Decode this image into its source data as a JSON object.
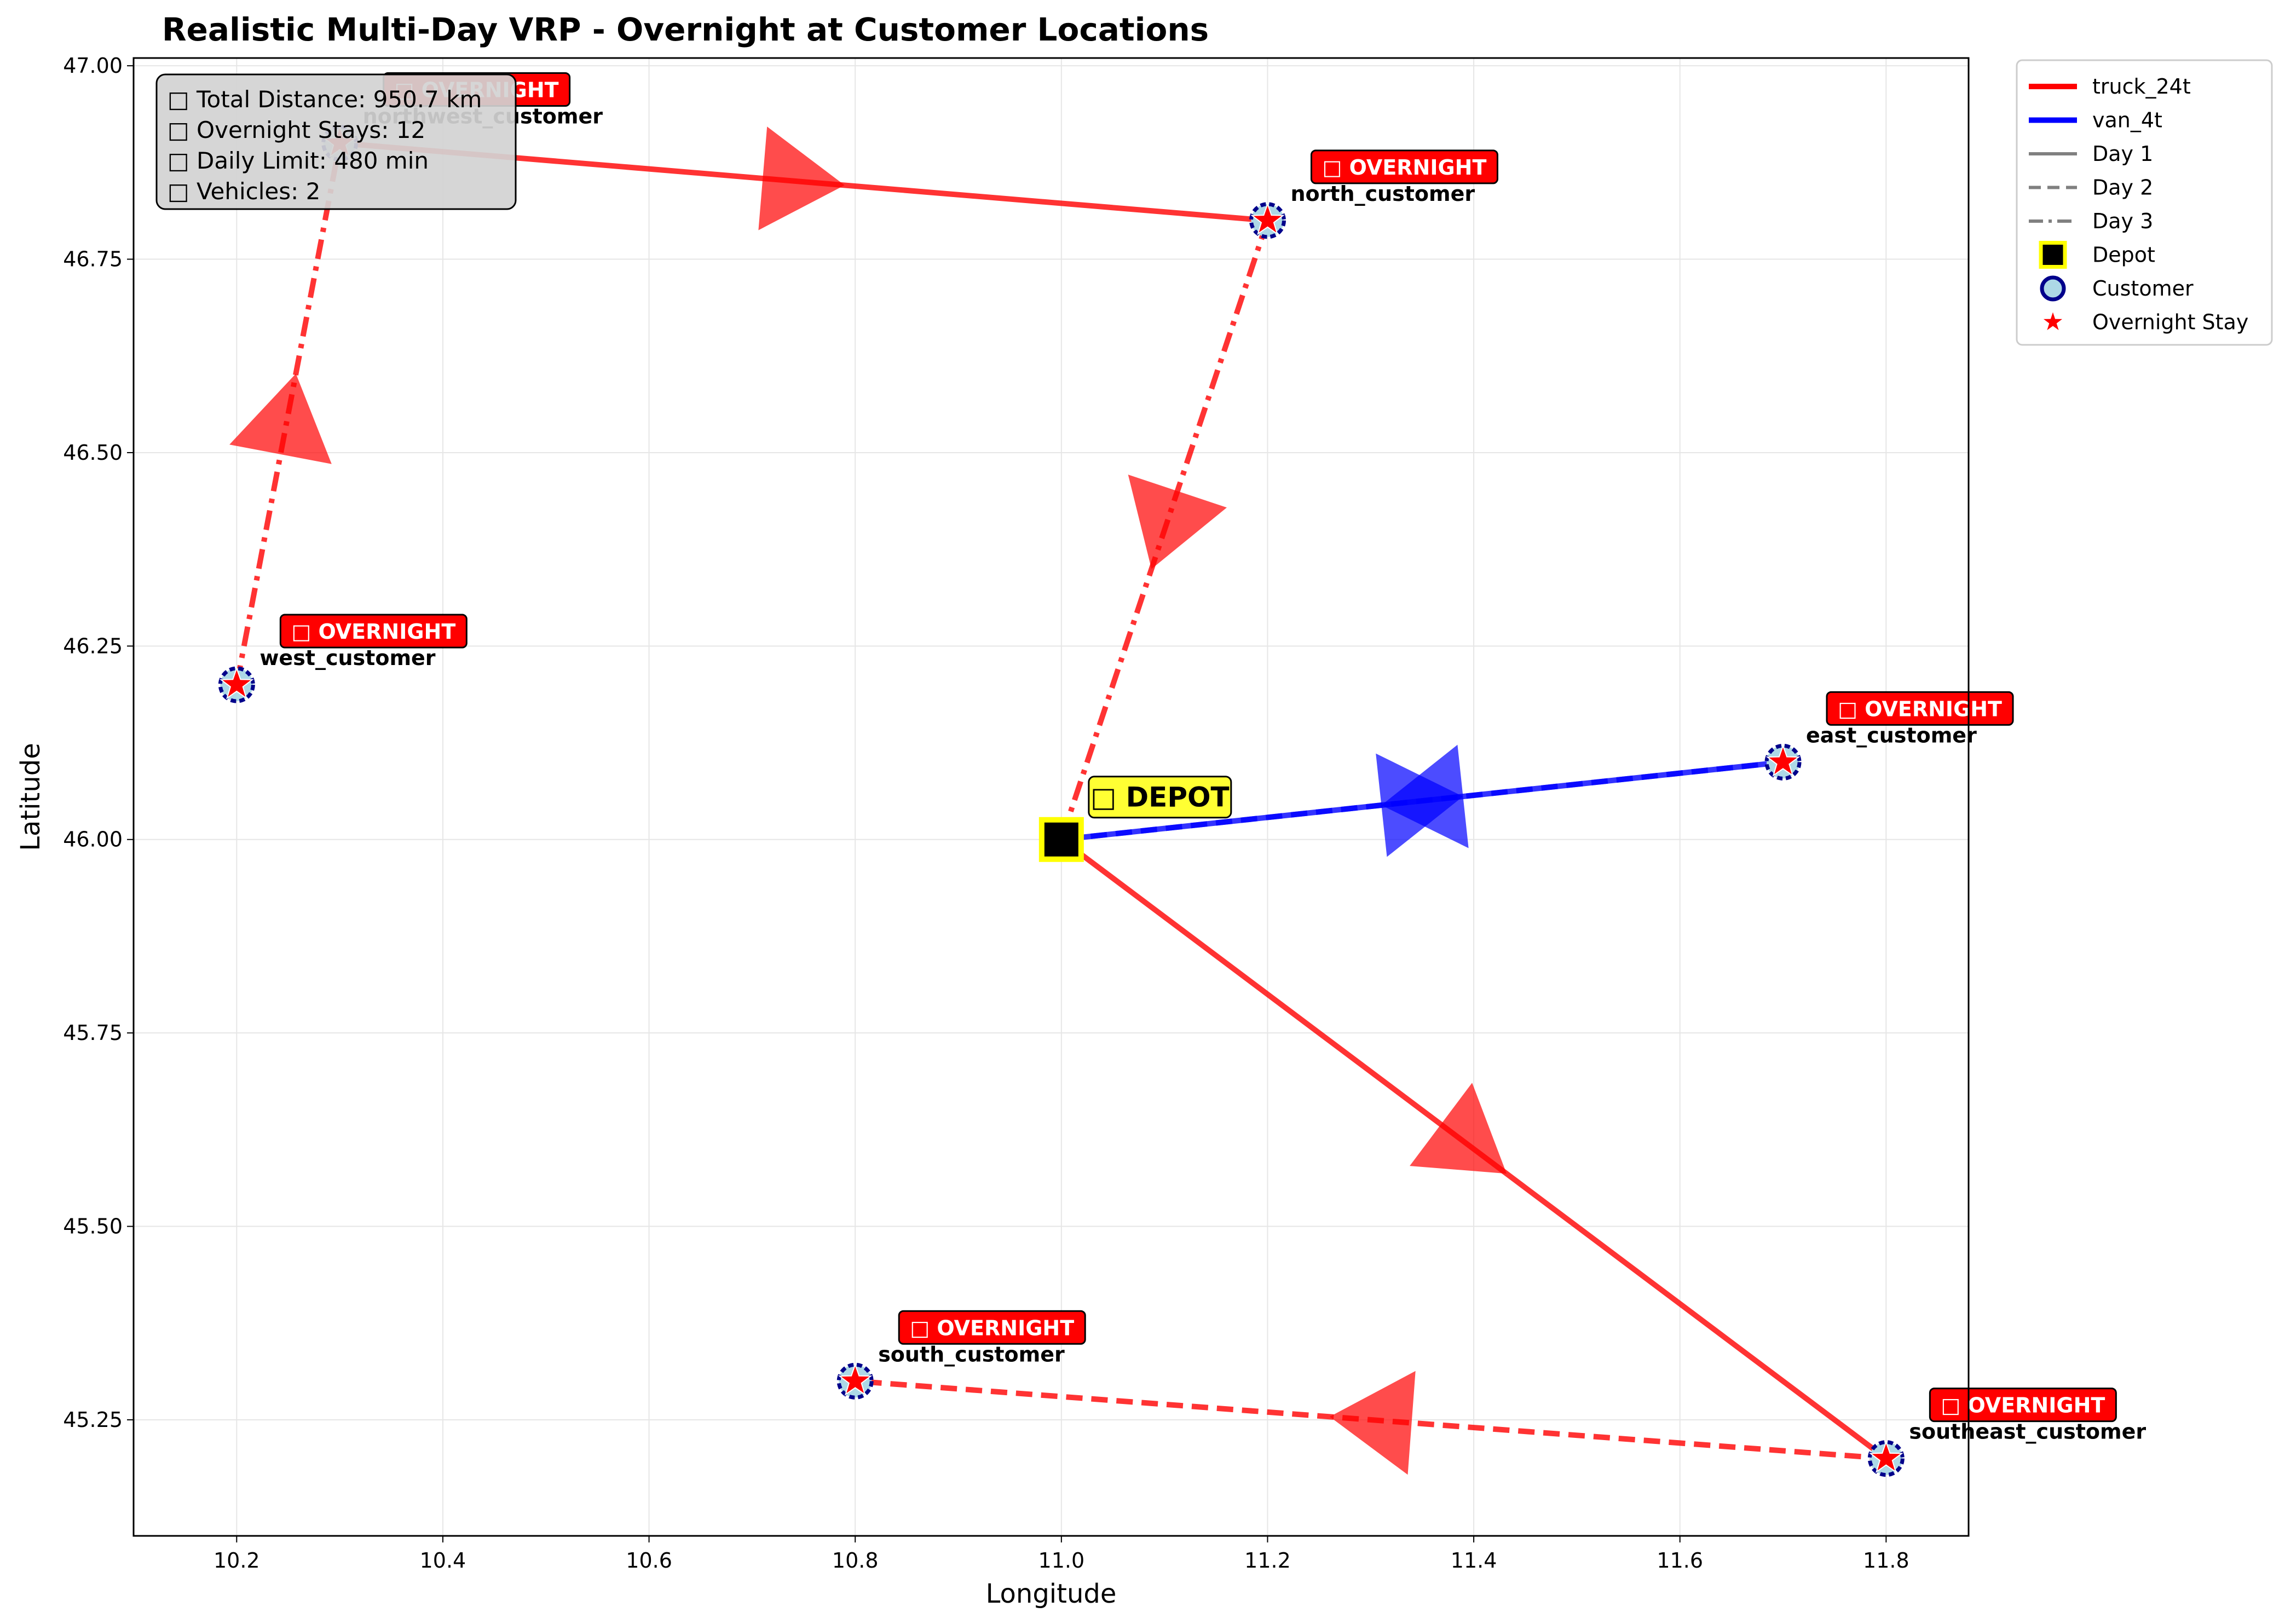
{
  "chart_data": {
    "type": "scatter",
    "title": "Realistic Multi-Day VRP - Overnight at Customer Locations",
    "xlabel": "Longitude",
    "ylabel": "Latitude",
    "xlim": [
      10.1,
      11.88
    ],
    "ylim": [
      45.1,
      47.01
    ],
    "xticks": [
      "10.2",
      "10.4",
      "10.6",
      "10.8",
      "11.0",
      "11.2",
      "11.4",
      "11.6",
      "11.8"
    ],
    "yticks": [
      "45.25",
      "45.50",
      "45.75",
      "46.00",
      "46.25",
      "46.50",
      "46.75",
      "47.00"
    ],
    "grid": true,
    "legend_position": "outside-top-right",
    "stats": [
      "□ Total Distance: 950.7 km",
      "□ Overnight Stays: 12",
      "□ Daily Limit: 480 min",
      "□ Vehicles: 2"
    ],
    "depot": {
      "x": 11.0,
      "y": 46.0,
      "label": "□ DEPOT"
    },
    "overnight_badge": "□ OVERNIGHT",
    "customers": [
      {
        "name": "northwest_customer",
        "x": 10.3,
        "y": 46.9,
        "overnight": true
      },
      {
        "name": "north_customer",
        "x": 11.2,
        "y": 46.8,
        "overnight": true
      },
      {
        "name": "west_customer",
        "x": 10.2,
        "y": 46.2,
        "overnight": true
      },
      {
        "name": "east_customer",
        "x": 11.7,
        "y": 46.1,
        "overnight": true
      },
      {
        "name": "south_customer",
        "x": 10.8,
        "y": 45.3,
        "overnight": true
      },
      {
        "name": "southeast_customer",
        "x": 11.8,
        "y": 45.2,
        "overnight": true
      }
    ],
    "routes": [
      {
        "vehicle": "truck_24t",
        "day": 1,
        "color": "#ff0000",
        "from": [
          11.0,
          46.0
        ],
        "to": [
          11.8,
          45.2
        ]
      },
      {
        "vehicle": "truck_24t",
        "day": 2,
        "color": "#ff0000",
        "from": [
          11.8,
          45.2
        ],
        "to": [
          10.8,
          45.3
        ]
      },
      {
        "vehicle": "truck_24t",
        "day": 3,
        "color": "#ff0000",
        "from": [
          10.2,
          46.2
        ],
        "to": [
          10.3,
          46.9
        ]
      },
      {
        "vehicle": "truck_24t",
        "day": 1,
        "color": "#ff0000",
        "from": [
          10.3,
          46.9
        ],
        "to": [
          11.2,
          46.8
        ]
      },
      {
        "vehicle": "truck_24t",
        "day": 3,
        "color": "#ff0000",
        "from": [
          11.2,
          46.8
        ],
        "to": [
          11.0,
          46.0
        ]
      },
      {
        "vehicle": "van_4t",
        "day": 1,
        "color": "#0000ff",
        "from": [
          11.0,
          46.0
        ],
        "to": [
          11.7,
          46.1
        ]
      },
      {
        "vehicle": "van_4t",
        "day": 2,
        "color": "#0000ff",
        "from": [
          11.7,
          46.1
        ],
        "to": [
          11.0,
          46.0
        ]
      }
    ],
    "legend": [
      {
        "label": "truck_24t",
        "kind": "line",
        "color": "#ff0000",
        "dash": "solid"
      },
      {
        "label": "van_4t",
        "kind": "line",
        "color": "#0000ff",
        "dash": "solid"
      },
      {
        "label": "Day 1",
        "kind": "line",
        "color": "#808080",
        "dash": "solid"
      },
      {
        "label": "Day 2",
        "kind": "line",
        "color": "#808080",
        "dash": "dashed"
      },
      {
        "label": "Day 3",
        "kind": "line",
        "color": "#808080",
        "dash": "dashdot"
      },
      {
        "label": "Depot",
        "kind": "depot",
        "color": "#000000"
      },
      {
        "label": "Customer",
        "kind": "customer",
        "color": "#add8e6"
      },
      {
        "label": "Overnight Stay",
        "kind": "star",
        "color": "#ff0000"
      }
    ]
  }
}
